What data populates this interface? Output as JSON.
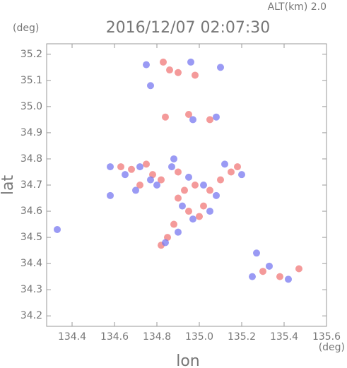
{
  "chart_data": {
    "type": "scatter",
    "altitude_label": "ALT(km) 2.0",
    "title": "2016/12/07 02:07:30",
    "ylabel": "lat",
    "xlabel": "lon",
    "yunit": "(deg)",
    "xunit": "(deg)",
    "xlim": [
      134.28,
      135.6
    ],
    "ylim": [
      34.16,
      35.24
    ],
    "xticks": [
      134.4,
      134.6,
      134.8,
      {
        "value": 135,
        "label": "135.0"
      },
      135.2,
      135.4,
      135.6
    ],
    "yticks": [
      34.2,
      34.3,
      34.4,
      34.5,
      34.6,
      34.7,
      34.8,
      34.9,
      {
        "value": 35,
        "label": "35.0"
      },
      35.1,
      35.2
    ],
    "series": [
      {
        "color": "#f07878",
        "x": [
          134.68,
          134.75,
          134.82,
          134.9,
          134.98,
          135.05,
          135.1,
          135.18,
          134.9,
          134.95,
          134.88,
          134.85,
          134.82,
          135.02,
          134.78,
          134.72,
          135.3,
          135.38,
          135.47,
          134.86,
          134.9,
          134.98,
          134.84,
          134.95,
          135.05,
          134.63,
          135.15,
          134.93,
          135.0,
          134.83
        ],
        "values": [
          34.76,
          34.78,
          34.72,
          34.75,
          34.7,
          34.68,
          34.72,
          34.77,
          34.65,
          34.6,
          34.55,
          34.5,
          34.47,
          34.62,
          34.74,
          34.7,
          34.37,
          34.35,
          34.38,
          35.14,
          35.13,
          35.12,
          34.96,
          34.97,
          34.95,
          34.77,
          34.75,
          34.68,
          34.58,
          35.17
        ]
      },
      {
        "color": "#7878f0",
        "x": [
          134.65,
          134.72,
          134.8,
          134.87,
          134.95,
          135.02,
          135.08,
          135.12,
          134.92,
          134.97,
          134.9,
          134.84,
          135.05,
          134.77,
          134.7,
          135.25,
          135.33,
          135.27,
          135.42,
          134.77,
          134.75,
          134.96,
          135.1,
          134.97,
          135.08,
          134.33,
          134.58,
          134.58,
          134.88,
          135.2
        ],
        "values": [
          34.74,
          34.77,
          34.7,
          34.77,
          34.73,
          34.7,
          34.66,
          34.78,
          34.62,
          34.57,
          34.52,
          34.48,
          34.6,
          34.72,
          34.68,
          34.35,
          34.39,
          34.44,
          34.34,
          35.08,
          35.16,
          35.17,
          35.15,
          34.95,
          34.96,
          34.53,
          34.77,
          34.66,
          34.8,
          34.74
        ]
      }
    ]
  }
}
